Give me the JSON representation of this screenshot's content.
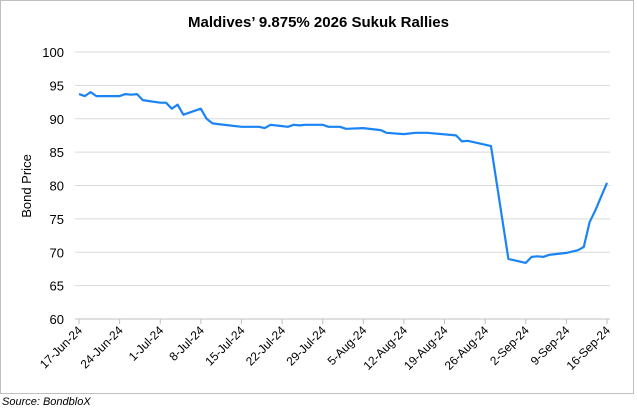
{
  "chart_data": {
    "type": "line",
    "title": "Maldives’ 9.875% 2026 Sukuk Rallies",
    "xlabel": "",
    "ylabel": "Bond Price",
    "ylim": [
      60,
      100
    ],
    "yticks": [
      60,
      65,
      70,
      75,
      80,
      85,
      90,
      95,
      100
    ],
    "xrange": [
      "2024-06-17",
      "2024-09-16"
    ],
    "xticks": [
      {
        "date": "2024-06-17",
        "label": "17-Jun-24"
      },
      {
        "date": "2024-06-24",
        "label": "24-Jun-24"
      },
      {
        "date": "2024-07-01",
        "label": "1-Jul-24"
      },
      {
        "date": "2024-07-08",
        "label": "8-Jul-24"
      },
      {
        "date": "2024-07-15",
        "label": "15-Jul-24"
      },
      {
        "date": "2024-07-22",
        "label": "22-Jul-24"
      },
      {
        "date": "2024-07-29",
        "label": "29-Jul-24"
      },
      {
        "date": "2024-08-05",
        "label": "5-Aug-24"
      },
      {
        "date": "2024-08-12",
        "label": "12-Aug-24"
      },
      {
        "date": "2024-08-19",
        "label": "19-Aug-24"
      },
      {
        "date": "2024-08-26",
        "label": "26-Aug-24"
      },
      {
        "date": "2024-09-02",
        "label": "2-Sep-24"
      },
      {
        "date": "2024-09-09",
        "label": "9-Sep-24"
      },
      {
        "date": "2024-09-16",
        "label": "16-Sep-24"
      }
    ],
    "grid": true,
    "series": [
      {
        "name": "Bond Price",
        "color": "#1a84f5",
        "points": [
          [
            "2024-06-17",
            93.7
          ],
          [
            "2024-06-18",
            93.4
          ],
          [
            "2024-06-19",
            94.0
          ],
          [
            "2024-06-20",
            93.4
          ],
          [
            "2024-06-24",
            93.4
          ],
          [
            "2024-06-25",
            93.7
          ],
          [
            "2024-06-26",
            93.6
          ],
          [
            "2024-06-27",
            93.7
          ],
          [
            "2024-06-28",
            92.8
          ],
          [
            "2024-07-01",
            92.4
          ],
          [
            "2024-07-02",
            92.4
          ],
          [
            "2024-07-03",
            91.5
          ],
          [
            "2024-07-04",
            92.1
          ],
          [
            "2024-07-05",
            90.6
          ],
          [
            "2024-07-08",
            91.5
          ],
          [
            "2024-07-09",
            90.0
          ],
          [
            "2024-07-10",
            89.3
          ],
          [
            "2024-07-11",
            89.2
          ],
          [
            "2024-07-15",
            88.8
          ],
          [
            "2024-07-18",
            88.8
          ],
          [
            "2024-07-19",
            88.6
          ],
          [
            "2024-07-20",
            89.1
          ],
          [
            "2024-07-22",
            88.9
          ],
          [
            "2024-07-23",
            88.8
          ],
          [
            "2024-07-24",
            89.1
          ],
          [
            "2024-07-25",
            89.0
          ],
          [
            "2024-07-26",
            89.1
          ],
          [
            "2024-07-29",
            89.1
          ],
          [
            "2024-07-30",
            88.8
          ],
          [
            "2024-08-01",
            88.8
          ],
          [
            "2024-08-02",
            88.5
          ],
          [
            "2024-08-05",
            88.6
          ],
          [
            "2024-08-08",
            88.3
          ],
          [
            "2024-08-09",
            87.9
          ],
          [
            "2024-08-12",
            87.7
          ],
          [
            "2024-08-14",
            87.9
          ],
          [
            "2024-08-16",
            87.9
          ],
          [
            "2024-08-21",
            87.5
          ],
          [
            "2024-08-22",
            86.6
          ],
          [
            "2024-08-23",
            86.7
          ],
          [
            "2024-08-25",
            86.3
          ],
          [
            "2024-08-27",
            85.9
          ],
          [
            "2024-08-30",
            69.0
          ],
          [
            "2024-09-02",
            68.4
          ],
          [
            "2024-09-03",
            69.3
          ],
          [
            "2024-09-04",
            69.4
          ],
          [
            "2024-09-05",
            69.3
          ],
          [
            "2024-09-06",
            69.6
          ],
          [
            "2024-09-09",
            69.9
          ],
          [
            "2024-09-11",
            70.3
          ],
          [
            "2024-09-12",
            70.8
          ],
          [
            "2024-09-13",
            74.5
          ],
          [
            "2024-09-14",
            76.3
          ],
          [
            "2024-09-16",
            80.4
          ]
        ]
      }
    ],
    "source": "Source: BondbloX"
  }
}
